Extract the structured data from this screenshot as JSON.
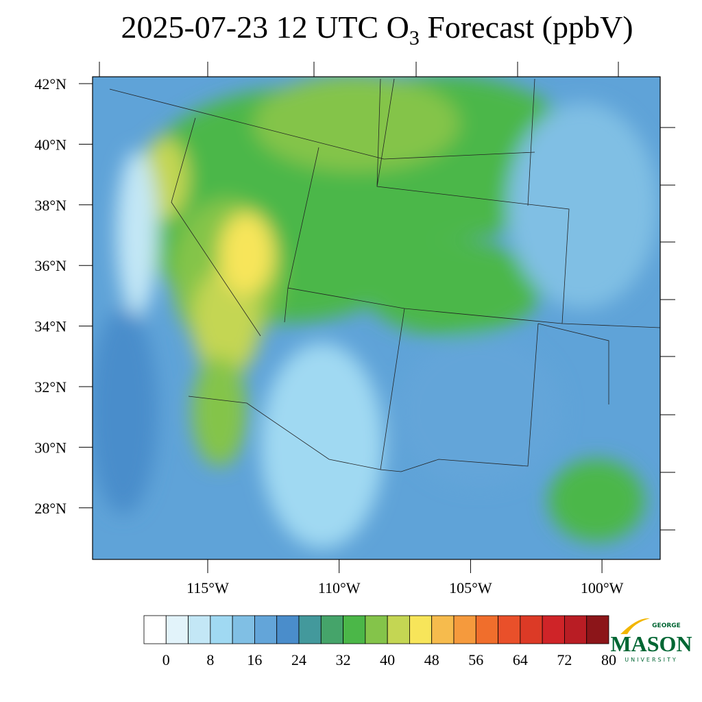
{
  "title": {
    "main": "2025-07-23 12 UTC O",
    "subscript": "3",
    "rest": " Forecast (ppbV)"
  },
  "map": {
    "lat_labels": [
      "42°N",
      "40°N",
      "38°N",
      "36°N",
      "34°N",
      "32°N",
      "30°N",
      "28°N"
    ],
    "lon_labels": [
      "115°W",
      "110°W",
      "105°W",
      "100°W"
    ]
  },
  "colorbar": {
    "colors": [
      "#ffffff",
      "#e2f3fa",
      "#c3e7f6",
      "#a0d9f2",
      "#80bfe4",
      "#63a5d9",
      "#4a8dcb",
      "#43999c",
      "#45a46a",
      "#4bb748",
      "#84c44a",
      "#c4d653",
      "#f7e55a",
      "#f6bb4d",
      "#f59a3d",
      "#f06e2c",
      "#e9502a",
      "#dc3a26",
      "#cf2428",
      "#b91d24",
      "#8c1519"
    ],
    "ticks": [
      0,
      8,
      16,
      24,
      32,
      40,
      48,
      56,
      64,
      72,
      80
    ]
  },
  "logo": {
    "line1": "GEORGE",
    "line2": "MASON",
    "line3": "UNIVERSITY"
  }
}
